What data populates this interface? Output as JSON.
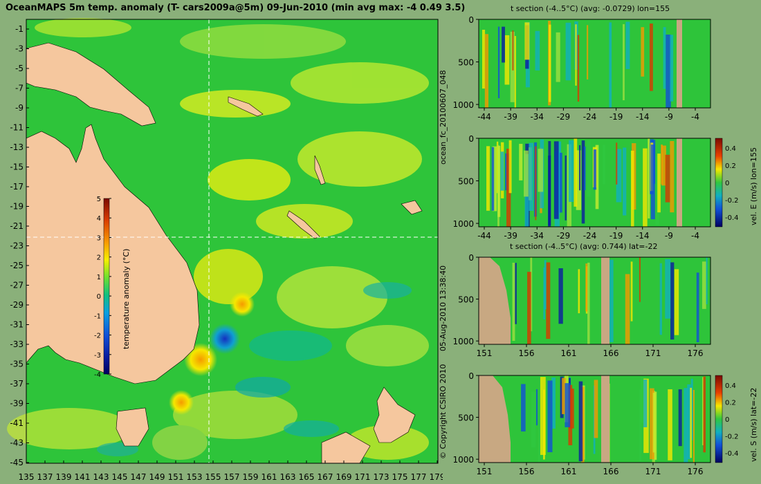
{
  "map": {
    "title": "OceanMAPS 5m temp. anomaly (T- cars2009a@5m) 09-Jun-2010 (min avg max: -4 0.49 3.5)",
    "lat_ticks": [
      "-1",
      "-3",
      "-5",
      "-7",
      "-9",
      "-11",
      "-13",
      "-15",
      "-17",
      "-19",
      "-21",
      "-23",
      "-25",
      "-27",
      "-29",
      "-31",
      "-33",
      "-35",
      "-37",
      "-39",
      "-41",
      "-43",
      "-45"
    ],
    "lon_ticks": [
      "135",
      "137",
      "139",
      "141",
      "143",
      "145",
      "147",
      "149",
      "151",
      "153",
      "155",
      "157",
      "159",
      "161",
      "163",
      "165",
      "167",
      "169",
      "171",
      "173",
      "175",
      "177",
      "179"
    ],
    "section_lon": 155,
    "section_lat": -22,
    "colorbar": {
      "label": "temperature anomaly (°C)",
      "ticks": [
        "5",
        "4",
        "3",
        "2",
        "1",
        "0",
        "-1",
        "-2",
        "-3",
        "-4"
      ]
    }
  },
  "panels": {
    "p1": {
      "title": "t section (-4..5°C) (avg: -0.0729) lon=155",
      "x_ticks": [
        "-44",
        "-39",
        "-34",
        "-29",
        "-24",
        "-19",
        "-14",
        "-9",
        "-4"
      ],
      "y_ticks": [
        "0",
        "500",
        "1000"
      ]
    },
    "p2": {
      "x_ticks": [
        "-44",
        "-39",
        "-34",
        "-29",
        "-24",
        "-19",
        "-14",
        "-9",
        "-4"
      ],
      "y_ticks": [
        "0",
        "500",
        "1000"
      ],
      "colorbar_label": "vel. E (m/s) lon=155",
      "colorbar_ticks": [
        "0.4",
        "0.2",
        "0",
        "-0.2",
        "-0.4"
      ]
    },
    "p3": {
      "title": "t section (-4..5°C) (avg: 0.744) lat=-22",
      "x_ticks": [
        "151",
        "156",
        "161",
        "166",
        "171",
        "176"
      ],
      "y_ticks": [
        "0",
        "500",
        "1000"
      ]
    },
    "p4": {
      "x_ticks": [
        "151",
        "156",
        "161",
        "166",
        "171",
        "176"
      ],
      "y_ticks": [
        "0",
        "500",
        "1000"
      ],
      "colorbar_label": "vel. S (m/s) lat=-22",
      "colorbar_ticks": [
        "0.4",
        "0.2",
        "0",
        "-0.2",
        "-0.4"
      ]
    }
  },
  "side_labels": {
    "run": "ocean_fc_20100607_048",
    "timestamp": "05-Aug-2010 13:38:40",
    "copyright": "© Copyright CSIRO 2010"
  },
  "colors": {
    "land": "#f5c79e",
    "land_section": "#c8a882",
    "ocean_base": "#2ec43a"
  }
}
